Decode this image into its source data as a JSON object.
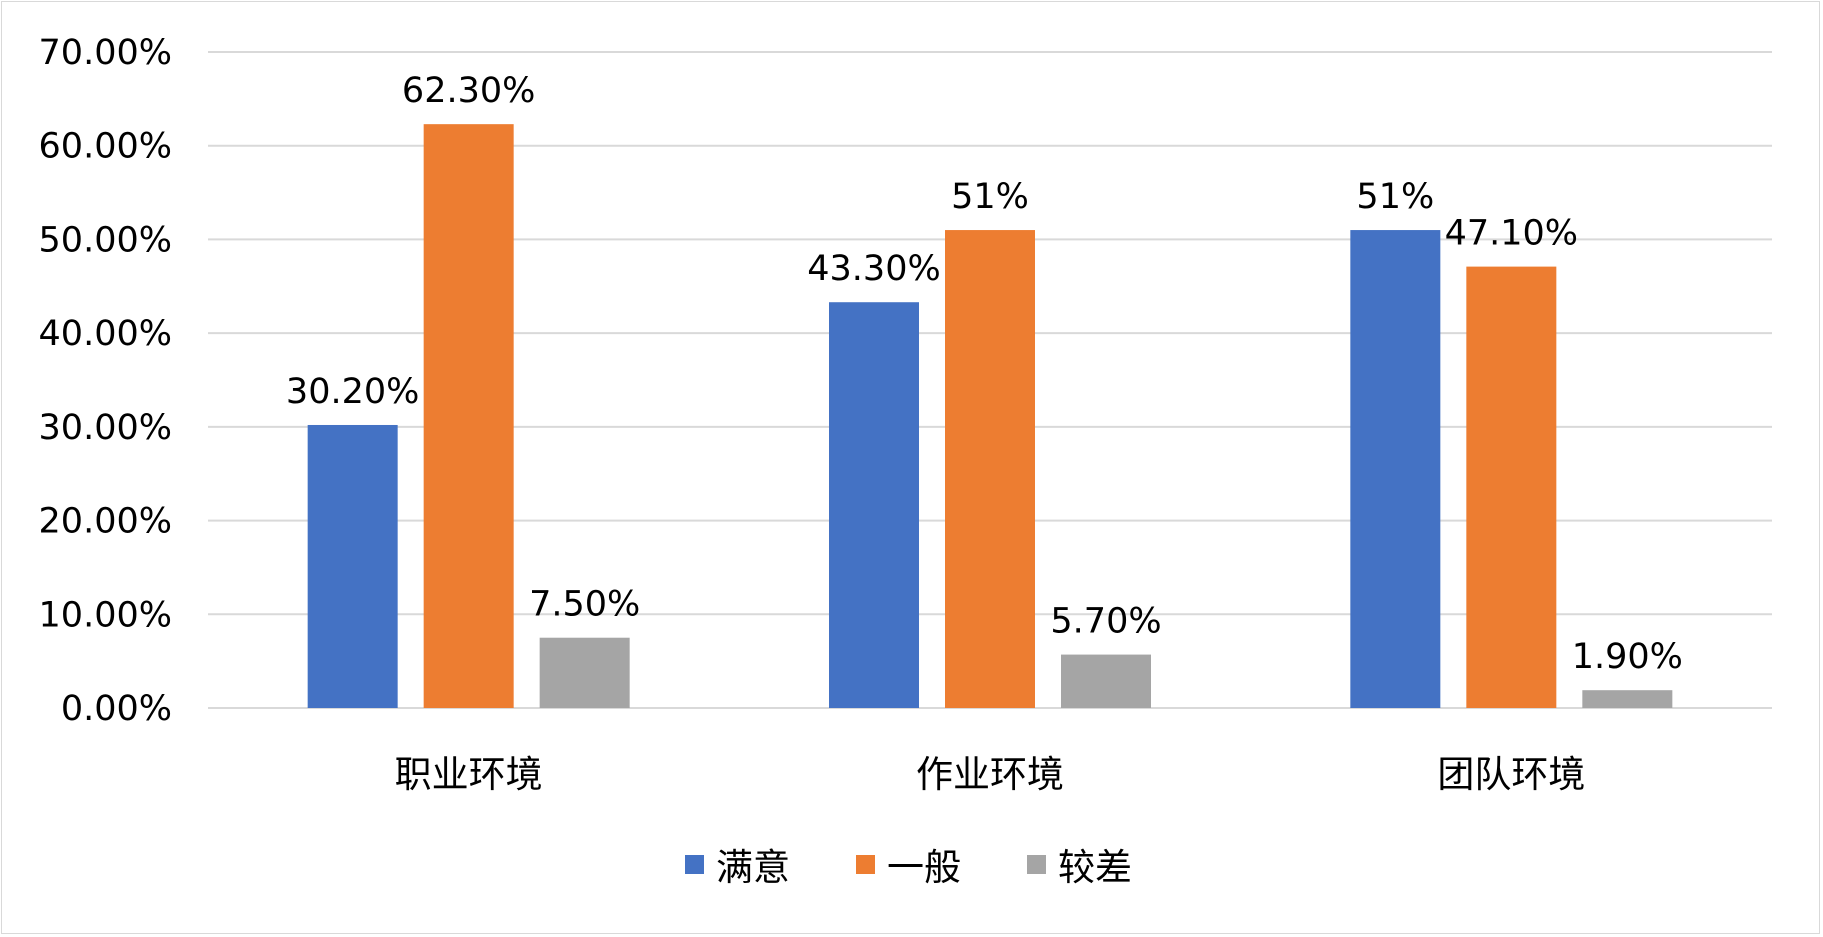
{
  "chart_data": {
    "type": "bar",
    "categories": [
      "职业环境",
      "作业环境",
      "团队环境"
    ],
    "series": [
      {
        "name": "满意",
        "color": "#4472C4",
        "values": [
          30.2,
          43.3,
          51.0
        ],
        "labels": [
          "30.20%",
          "43.30%",
          "51%"
        ]
      },
      {
        "name": "一般",
        "color": "#ED7D31",
        "values": [
          62.3,
          51.0,
          47.1
        ],
        "labels": [
          "62.30%",
          "51%",
          "47.10%"
        ]
      },
      {
        "name": "较差",
        "color": "#A5A5A5",
        "values": [
          7.5,
          5.7,
          1.9
        ],
        "labels": [
          "7.50%",
          "5.70%",
          "1.90%"
        ]
      }
    ],
    "ylim": [
      0,
      70
    ],
    "yticks": [
      0,
      10,
      20,
      30,
      40,
      50,
      60,
      70
    ],
    "ytick_labels": [
      "0.00%",
      "10.00%",
      "20.00%",
      "30.00%",
      "40.00%",
      "50.00%",
      "60.00%",
      "70.00%"
    ],
    "grid": true,
    "legend_position": "bottom",
    "gridline_color": "#d9d9d9"
  }
}
